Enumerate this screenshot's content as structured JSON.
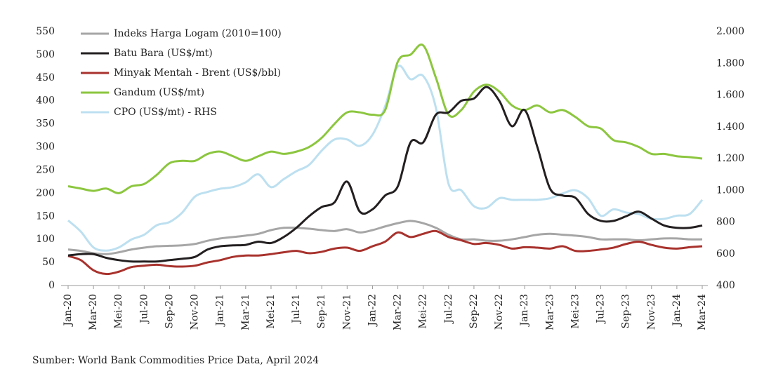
{
  "chart_data": {
    "type": "line",
    "categories": [
      "Jan-20",
      null,
      "Mar-20",
      null,
      "Mei-20",
      null,
      "Jul-20",
      null,
      "Sep-20",
      null,
      "Nov-20",
      null,
      "Jan-21",
      null,
      "Mar-21",
      null,
      "Mei-21",
      null,
      "Jul-21",
      null,
      "Sep-21",
      null,
      "Nov-21",
      null,
      "Jan-22",
      null,
      "Mar-22",
      null,
      "Mei-22",
      null,
      "Jul-22",
      null,
      "Sep-22",
      null,
      "Nov-22",
      null,
      "Jan-23",
      null,
      "Mar-23",
      null,
      "Mei-23",
      null,
      "Jul-23",
      null,
      "Sep-23",
      null,
      "Nov-23",
      null,
      "Jan-24",
      null,
      "Mar-24"
    ],
    "series": [
      {
        "name": "Indeks Harga Logam (2010=100)",
        "color": "#a6a6a6",
        "values": [
          78,
          75,
          70,
          68,
          72,
          78,
          82,
          85,
          86,
          87,
          90,
          97,
          102,
          105,
          108,
          112,
          120,
          125,
          125,
          123,
          120,
          118,
          122,
          115,
          120,
          128,
          135,
          140,
          135,
          125,
          110,
          100,
          100,
          97,
          97,
          100,
          105,
          110,
          112,
          110,
          108,
          105,
          100,
          100,
          100,
          98,
          100,
          102,
          102,
          100,
          100
        ]
      },
      {
        "name": "Batu Bara (US$/mt)",
        "color": "#231f20",
        "values": [
          65,
          68,
          68,
          60,
          55,
          52,
          52,
          52,
          55,
          58,
          62,
          78,
          85,
          87,
          88,
          95,
          92,
          105,
          125,
          150,
          170,
          180,
          225,
          160,
          165,
          195,
          215,
          310,
          310,
          370,
          375,
          400,
          405,
          430,
          400,
          345,
          380,
          300,
          210,
          195,
          190,
          155,
          140,
          140,
          150,
          160,
          145,
          130,
          125,
          125,
          130
        ]
      },
      {
        "name": "Minyak Mentah - Brent (US$/bbl)",
        "color": "#a8322d",
        "values": [
          64,
          55,
          33,
          25,
          30,
          40,
          43,
          45,
          42,
          41,
          43,
          50,
          55,
          62,
          65,
          65,
          68,
          72,
          75,
          70,
          73,
          80,
          82,
          75,
          85,
          95,
          115,
          105,
          112,
          118,
          105,
          98,
          90,
          92,
          88,
          80,
          83,
          82,
          80,
          85,
          75,
          75,
          78,
          82,
          90,
          95,
          88,
          82,
          80,
          83,
          85
        ]
      },
      {
        "name": "Gandum (US$/mt)",
        "color": "#8cc63f",
        "values": [
          215,
          210,
          205,
          210,
          200,
          215,
          220,
          240,
          265,
          270,
          270,
          285,
          290,
          280,
          270,
          280,
          290,
          285,
          290,
          300,
          320,
          350,
          375,
          375,
          370,
          380,
          485,
          500,
          520,
          450,
          370,
          380,
          420,
          435,
          420,
          390,
          380,
          390,
          375,
          380,
          365,
          345,
          340,
          315,
          310,
          300,
          285,
          285,
          280,
          278,
          275
        ]
      },
      {
        "name": "CPO (US$/mt) - RHS",
        "color": "#bde0f0",
        "axis": "y2",
        "values": [
          810,
          740,
          640,
          620,
          640,
          690,
          720,
          780,
          800,
          860,
          960,
          990,
          1010,
          1020,
          1050,
          1100,
          1020,
          1070,
          1120,
          1160,
          1250,
          1320,
          1320,
          1280,
          1350,
          1530,
          1780,
          1700,
          1720,
          1520,
          1040,
          1000,
          900,
          890,
          950,
          940,
          940,
          940,
          950,
          980,
          1000,
          950,
          840,
          880,
          860,
          850,
          820,
          820,
          840,
          850,
          940
        ]
      }
    ],
    "ylim": [
      0,
      550
    ],
    "yticks": [
      0,
      50,
      100,
      150,
      200,
      250,
      300,
      350,
      400,
      450,
      500,
      550
    ],
    "y2lim": [
      400,
      2000
    ],
    "y2ticks": [
      400,
      600,
      800,
      {
        "value": 1000,
        "label": "1.000"
      },
      {
        "value": 1200,
        "label": "1.200"
      },
      {
        "value": 1400,
        "label": "1.400"
      },
      {
        "value": 1600,
        "label": "1.600"
      },
      {
        "value": 1800,
        "label": "1.800"
      },
      {
        "value": 2000,
        "label": "2.000"
      }
    ],
    "legend": "upper left",
    "source": "Sumber: World Bank Commodities Price Data, April 2024"
  }
}
